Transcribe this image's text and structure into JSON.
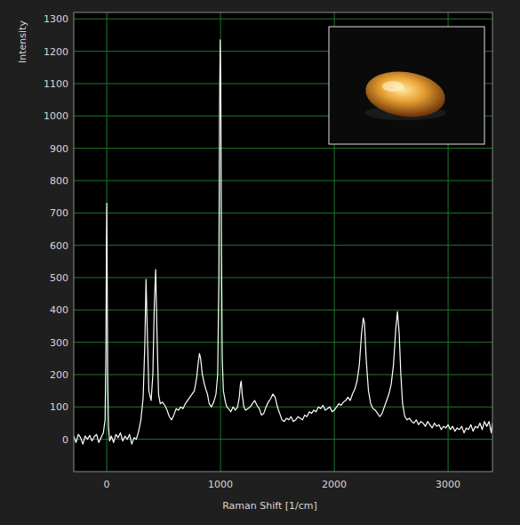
{
  "chart_data": {
    "type": "line",
    "x_label": "Raman Shift [1/cm]",
    "y_label": "Intensity",
    "color": "#ffffff",
    "grid": true,
    "xlim": [
      -290,
      3390
    ],
    "ylim": [
      -100,
      1320
    ],
    "xticks": [
      0,
      1000,
      2000,
      3000
    ],
    "yticks": [
      0,
      100,
      200,
      300,
      400,
      500,
      600,
      700,
      800,
      900,
      1000,
      1100,
      1200,
      1300
    ],
    "x": [
      -290,
      -270,
      -250,
      -230,
      -210,
      -190,
      -170,
      -150,
      -130,
      -110,
      -90,
      -70,
      -50,
      -30,
      -15,
      -8,
      -3,
      0,
      3,
      8,
      15,
      25,
      40,
      60,
      80,
      100,
      120,
      140,
      160,
      180,
      200,
      220,
      240,
      260,
      280,
      300,
      320,
      335,
      345,
      355,
      370,
      390,
      405,
      418,
      430,
      440,
      455,
      470,
      490,
      510,
      530,
      550,
      570,
      590,
      610,
      630,
      650,
      670,
      690,
      710,
      730,
      750,
      770,
      790,
      805,
      815,
      825,
      840,
      855,
      870,
      885,
      900,
      920,
      940,
      960,
      975,
      985,
      992,
      997,
      1002,
      1008,
      1015,
      1025,
      1040,
      1055,
      1070,
      1090,
      1110,
      1130,
      1150,
      1165,
      1175,
      1182,
      1190,
      1205,
      1220,
      1240,
      1260,
      1280,
      1300,
      1320,
      1340,
      1360,
      1380,
      1400,
      1420,
      1440,
      1460,
      1480,
      1500,
      1520,
      1540,
      1560,
      1580,
      1600,
      1620,
      1640,
      1660,
      1680,
      1700,
      1720,
      1740,
      1760,
      1780,
      1800,
      1820,
      1840,
      1860,
      1880,
      1900,
      1920,
      1940,
      1960,
      1980,
      2000,
      2020,
      2040,
      2060,
      2080,
      2100,
      2120,
      2140,
      2160,
      2180,
      2200,
      2220,
      2240,
      2255,
      2265,
      2280,
      2300,
      2320,
      2340,
      2360,
      2380,
      2400,
      2420,
      2440,
      2460,
      2480,
      2500,
      2520,
      2540,
      2555,
      2570,
      2585,
      2600,
      2620,
      2640,
      2660,
      2680,
      2700,
      2720,
      2740,
      2760,
      2780,
      2800,
      2820,
      2840,
      2860,
      2880,
      2900,
      2920,
      2940,
      2960,
      2980,
      3000,
      3020,
      3040,
      3060,
      3080,
      3100,
      3120,
      3140,
      3160,
      3180,
      3200,
      3220,
      3240,
      3260,
      3280,
      3300,
      3320,
      3340,
      3360,
      3380,
      3390
    ],
    "values": [
      10,
      -10,
      15,
      5,
      -15,
      10,
      0,
      12,
      -5,
      8,
      15,
      -10,
      5,
      20,
      60,
      250,
      600,
      730,
      550,
      200,
      40,
      -5,
      10,
      -10,
      15,
      5,
      20,
      -5,
      10,
      0,
      15,
      -15,
      5,
      0,
      25,
      60,
      130,
      300,
      495,
      350,
      150,
      120,
      200,
      420,
      525,
      350,
      140,
      110,
      115,
      105,
      90,
      70,
      60,
      75,
      95,
      90,
      100,
      95,
      110,
      120,
      130,
      140,
      150,
      190,
      240,
      265,
      250,
      200,
      175,
      155,
      140,
      110,
      100,
      115,
      140,
      200,
      500,
      1050,
      1235,
      1100,
      600,
      250,
      150,
      120,
      100,
      95,
      85,
      100,
      90,
      100,
      130,
      170,
      180,
      140,
      100,
      90,
      95,
      100,
      110,
      120,
      105,
      95,
      75,
      80,
      100,
      115,
      125,
      140,
      130,
      100,
      80,
      60,
      55,
      65,
      60,
      70,
      55,
      60,
      70,
      65,
      60,
      75,
      70,
      85,
      80,
      90,
      85,
      100,
      95,
      105,
      90,
      95,
      100,
      85,
      90,
      100,
      110,
      105,
      115,
      120,
      130,
      120,
      140,
      155,
      180,
      230,
      330,
      375,
      360,
      250,
      150,
      110,
      95,
      90,
      80,
      70,
      80,
      100,
      120,
      140,
      170,
      230,
      340,
      395,
      330,
      200,
      110,
      70,
      60,
      65,
      55,
      50,
      60,
      45,
      55,
      50,
      40,
      55,
      45,
      35,
      50,
      40,
      45,
      30,
      40,
      35,
      45,
      30,
      40,
      25,
      35,
      30,
      40,
      20,
      35,
      30,
      45,
      25,
      40,
      35,
      50,
      30,
      55,
      40,
      55,
      20,
      50
    ]
  }
}
